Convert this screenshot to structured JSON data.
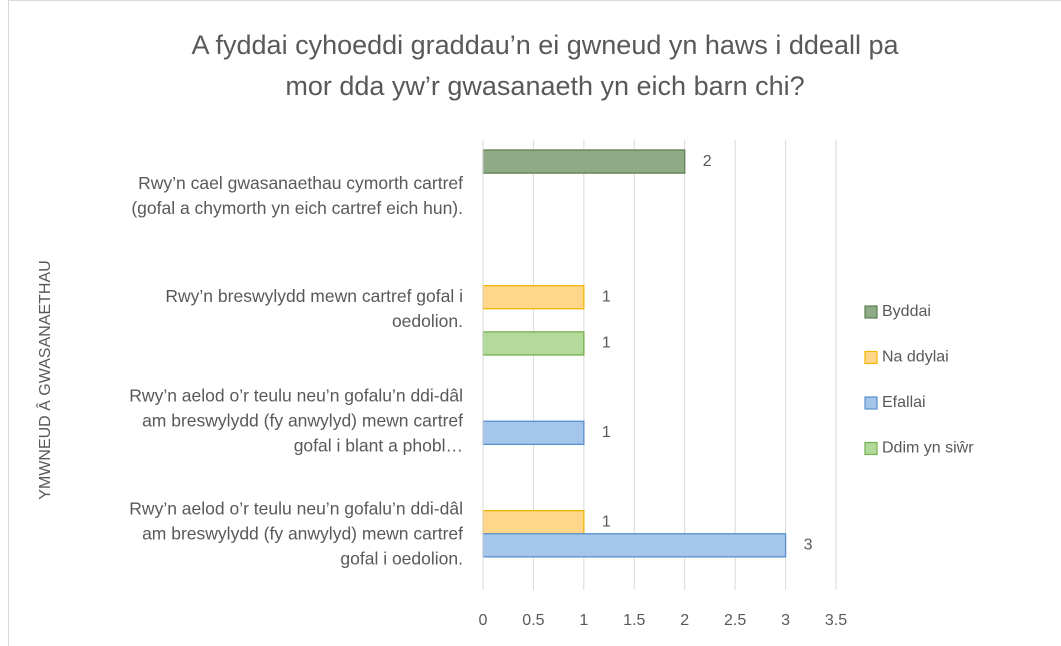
{
  "chart_data": {
    "type": "bar",
    "orientation": "horizontal",
    "title": [
      "A fyddai cyhoeddi graddau’n ei gwneud yn haws i ddeall pa",
      "mor dda yw’r gwasanaeth yn eich barn chi?"
    ],
    "y_label": "YMWNEUD Â GWASANAETHAU",
    "categories": [
      "Rwy’n cael gwasanaethau cymorth cartref (gofal a chymorth yn eich cartref eich hun).",
      "Rwy’n breswylydd mewn cartref gofal i oedolion.",
      "Rwy’n aelod o’r teulu neu’n gofalu’n ddi-dâl am breswylydd (fy anwylyd) mewn cartref gofal i blant a phobl…",
      "Rwy’n aelod o’r teulu neu’n gofalu’n ddi-dâl am breswylydd (fy anwylyd) mewn cartref gofal i oedolion."
    ],
    "series": [
      {
        "name": "Byddai",
        "color": "#8fab85",
        "stroke": "#5f7f55",
        "values": [
          2,
          null,
          null,
          null
        ]
      },
      {
        "name": "Na ddylai",
        "color": "#ffd68a",
        "stroke": "#f2b705",
        "values": [
          null,
          1,
          null,
          1
        ]
      },
      {
        "name": "Efallai",
        "color": "#a4c6ea",
        "stroke": "#5a8fcc",
        "values": [
          null,
          null,
          1,
          3
        ]
      },
      {
        "name": "Ddim yn siŵr",
        "color": "#b3d99b",
        "stroke": "#72b04c",
        "values": [
          null,
          1,
          null,
          null
        ]
      }
    ],
    "xlim": [
      0,
      3.5
    ],
    "xticks": [
      0,
      0.5,
      1,
      1.5,
      2,
      2.5,
      3,
      3.5
    ],
    "grid": true,
    "legend": "right"
  }
}
